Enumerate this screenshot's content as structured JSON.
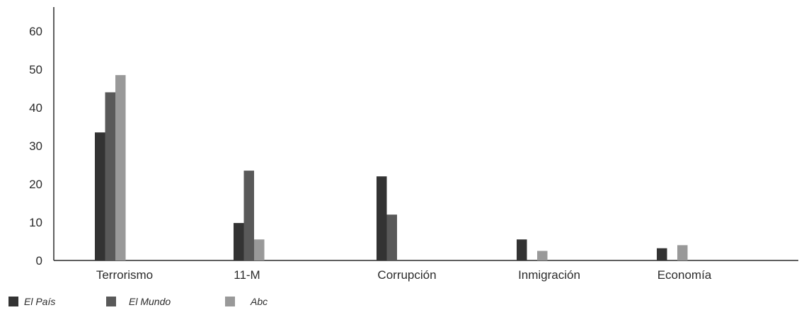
{
  "chart_data": {
    "type": "bar",
    "title": "",
    "xlabel": "",
    "ylabel": "",
    "ylim": [
      0,
      60
    ],
    "yticks": [
      "0",
      "10",
      "20",
      "30",
      "40",
      "50",
      "60"
    ],
    "categories": [
      "Terrorismo",
      "11-M",
      "Corrupción",
      "Inmigración",
      "Economía"
    ],
    "series": [
      {
        "name": "El País",
        "color": "#333333",
        "values": [
          33.5,
          9.8,
          22,
          5.5,
          3.2
        ]
      },
      {
        "name": "El Mundo",
        "color": "#595959",
        "values": [
          44,
          23.5,
          12,
          0,
          0
        ]
      },
      {
        "name": "Abc",
        "color": "#999999",
        "values": [
          48.5,
          5.5,
          0,
          2.5,
          4
        ]
      }
    ],
    "grid": false,
    "legend_position": "bottom-left"
  }
}
